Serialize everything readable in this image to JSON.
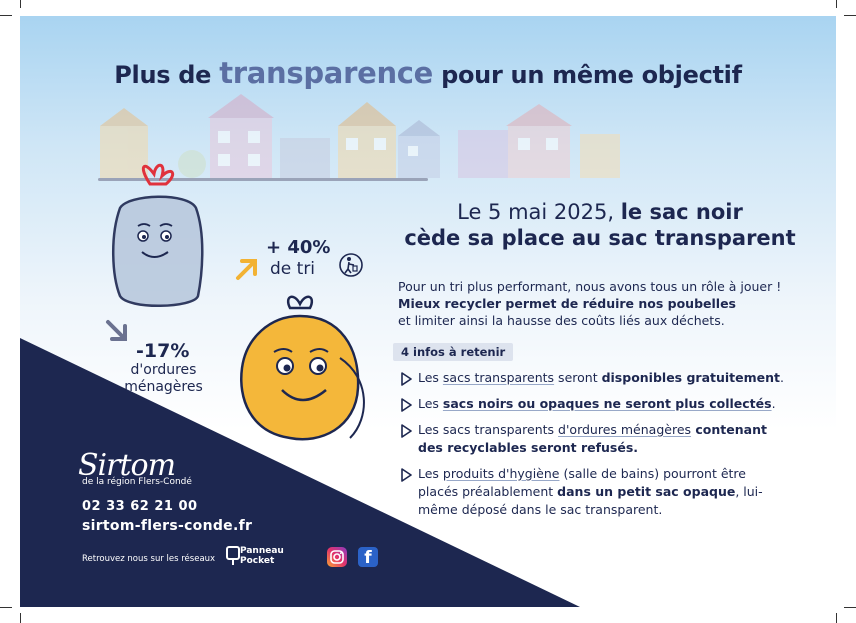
{
  "title": {
    "pre": "Plus de ",
    "highlight": "transparence",
    "post": " pour un même objectif"
  },
  "headline": {
    "date": "Le 5 mai 2025,",
    "bold1": "le sac noir",
    "line2": "cède sa place au sac transparent"
  },
  "intro": {
    "l1": "Pour un tri plus performant, nous avons tous un rôle à jouer !",
    "l2": "Mieux recycler permet de réduire nos poubelles",
    "l3": "et limiter ainsi la hausse des coûts liés aux déchets."
  },
  "badge": "4 infos à retenir",
  "infos": [
    {
      "a": "Les ",
      "u": "sacs transparents",
      "b": " seront ",
      "bold": "disponibles gratuitement",
      "c": "."
    },
    {
      "a": "Les ",
      "bold": "sacs noirs ou opaques ne seront plus collectés",
      "c": "."
    },
    {
      "a": "Les sacs transparents ",
      "u": "d'ordures ménagères",
      "bold": " contenant",
      "bold2": "des recyclables seront refusés."
    },
    {
      "a": "Les ",
      "u": "produits d'hygiène",
      "b": " (salle de bains) pourront être",
      "a2": "placés préalablement ",
      "bold": "dans un petit sac opaque",
      "c": ", lui-",
      "a3": "même déposé dans le sac transparent."
    }
  ],
  "stats": {
    "minus": {
      "value": "-17%",
      "l1": "d'ordures",
      "l2": "ménagères"
    },
    "plus": {
      "value": "+ 40%",
      "label": "de tri"
    }
  },
  "footer": {
    "logo": "Sirtom",
    "logo_sub": "de la région Flers-Condé",
    "phone": "02 33 62 21 00",
    "site": "sirtom-flers-conde.fr",
    "social_text": "Retrouvez nous sur les réseaux",
    "pp1": "Panneau",
    "pp2": "Pocket",
    "fb": "f"
  },
  "colors": {
    "navy": "#1d2750",
    "sky": "#a9d4f1",
    "yellow": "#f4b73a",
    "arrow_yellow": "#f2b233",
    "accent": "#5b6fa3"
  }
}
